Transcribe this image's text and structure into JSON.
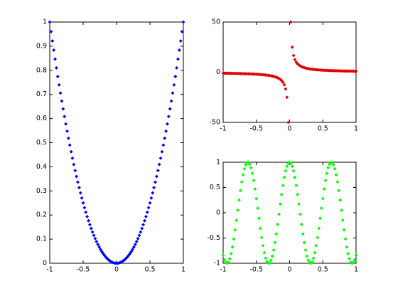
{
  "chart_data": [
    {
      "type": "scatter",
      "color": "#0000ff",
      "x": [
        -1,
        -0.98,
        -0.96,
        -0.94,
        -0.92,
        -0.9,
        -0.88,
        -0.86,
        -0.84,
        -0.82,
        -0.8,
        -0.78,
        -0.76,
        -0.74,
        -0.72,
        -0.7,
        -0.68,
        -0.66,
        -0.64,
        -0.62,
        -0.6,
        -0.58,
        -0.56,
        -0.54,
        -0.52,
        -0.5,
        -0.48,
        -0.46,
        -0.44,
        -0.42,
        -0.4,
        -0.38,
        -0.36,
        -0.34,
        -0.32,
        -0.3,
        -0.28,
        -0.26,
        -0.24,
        -0.22,
        -0.2,
        -0.18,
        -0.16,
        -0.14,
        -0.12,
        -0.1,
        -0.08,
        -0.06,
        -0.04,
        -0.02,
        0,
        0.02,
        0.04,
        0.06,
        0.08,
        0.1,
        0.12,
        0.14,
        0.16,
        0.18,
        0.2,
        0.22,
        0.24,
        0.26,
        0.28,
        0.3,
        0.32,
        0.34,
        0.36,
        0.38,
        0.4,
        0.42,
        0.44,
        0.46,
        0.48,
        0.5,
        0.52,
        0.54,
        0.56,
        0.58,
        0.6,
        0.62,
        0.64,
        0.66,
        0.68,
        0.7,
        0.72,
        0.74,
        0.76,
        0.78,
        0.8,
        0.82,
        0.84,
        0.86,
        0.88,
        0.9,
        0.92,
        0.94,
        0.96,
        0.98,
        1
      ],
      "values": [
        1,
        0.9604,
        0.9216,
        0.8836,
        0.8464,
        0.81,
        0.7744,
        0.7396,
        0.7056,
        0.6724,
        0.64,
        0.6084,
        0.5776,
        0.5476,
        0.5184,
        0.49,
        0.4624,
        0.4356,
        0.4096,
        0.3844,
        0.36,
        0.3364,
        0.3136,
        0.2916,
        0.2704,
        0.25,
        0.2304,
        0.2116,
        0.1936,
        0.1764,
        0.16,
        0.1444,
        0.1296,
        0.1156,
        0.1024,
        0.09,
        0.0784,
        0.0676,
        0.0576,
        0.0484,
        0.04,
        0.0324,
        0.0256,
        0.0196,
        0.0144,
        0.01,
        0.0064,
        0.0036,
        0.0016,
        0.0004,
        0,
        0.0004,
        0.0016,
        0.0036,
        0.0064,
        0.01,
        0.0144,
        0.0196,
        0.0256,
        0.0324,
        0.04,
        0.0484,
        0.0576,
        0.0676,
        0.0784,
        0.09,
        0.1024,
        0.1156,
        0.1296,
        0.1444,
        0.16,
        0.1764,
        0.1936,
        0.2116,
        0.2304,
        0.25,
        0.2704,
        0.2916,
        0.3136,
        0.3364,
        0.36,
        0.3844,
        0.4096,
        0.4356,
        0.4624,
        0.49,
        0.5184,
        0.5476,
        0.5776,
        0.6084,
        0.64,
        0.6724,
        0.7056,
        0.7396,
        0.7744,
        0.81,
        0.8464,
        0.8836,
        0.9216,
        0.9604,
        1
      ],
      "xlim": [
        -1,
        1
      ],
      "xticks": [
        -1,
        -0.5,
        0,
        0.5,
        1
      ],
      "ylim": [
        0,
        1
      ],
      "yticks": [
        0,
        0.1,
        0.2,
        0.3,
        0.4,
        0.5,
        0.6,
        0.7,
        0.8,
        0.9,
        1
      ]
    },
    {
      "type": "scatter",
      "color": "#e00000",
      "x": [
        -1,
        -0.98,
        -0.96,
        -0.94,
        -0.92,
        -0.9,
        -0.88,
        -0.86,
        -0.84,
        -0.82,
        -0.8,
        -0.78,
        -0.76,
        -0.74,
        -0.72,
        -0.7,
        -0.68,
        -0.66,
        -0.64,
        -0.62,
        -0.6,
        -0.58,
        -0.56,
        -0.54,
        -0.52,
        -0.5,
        -0.48,
        -0.46,
        -0.44,
        -0.42,
        -0.4,
        -0.38,
        -0.36,
        -0.34,
        -0.32,
        -0.3,
        -0.28,
        -0.26,
        -0.24,
        -0.22,
        -0.2,
        -0.18,
        -0.16,
        -0.14,
        -0.12,
        -0.1,
        -0.08,
        -0.06,
        -0.04,
        -0.02,
        0,
        0.02,
        0.04,
        0.06,
        0.08,
        0.1,
        0.12,
        0.14,
        0.16,
        0.18,
        0.2,
        0.22,
        0.24,
        0.26,
        0.28,
        0.3,
        0.32,
        0.34,
        0.36,
        0.38,
        0.4,
        0.42,
        0.44,
        0.46,
        0.48,
        0.5,
        0.52,
        0.54,
        0.56,
        0.58,
        0.6,
        0.62,
        0.64,
        0.66,
        0.68,
        0.7,
        0.72,
        0.74,
        0.76,
        0.78,
        0.8,
        0.82,
        0.84,
        0.86,
        0.88,
        0.9,
        0.92,
        0.94,
        0.96,
        0.98,
        1
      ],
      "values": [
        -1,
        -1.02,
        -1.04,
        -1.06,
        -1.09,
        -1.11,
        -1.14,
        -1.16,
        -1.19,
        -1.22,
        -1.25,
        -1.28,
        -1.32,
        -1.35,
        -1.39,
        -1.43,
        -1.47,
        -1.52,
        -1.56,
        -1.61,
        -1.67,
        -1.72,
        -1.79,
        -1.85,
        -1.92,
        -2,
        -2.08,
        -2.17,
        -2.27,
        -2.38,
        -2.5,
        -2.63,
        -2.78,
        -2.94,
        -3.13,
        -3.33,
        -3.57,
        -3.85,
        -4.17,
        -4.55,
        -5,
        -5.56,
        -6.25,
        -7.14,
        -8.33,
        -10,
        -12.5,
        -16.67,
        -25,
        -50,
        null,
        50,
        25,
        16.67,
        12.5,
        10,
        8.33,
        7.14,
        6.25,
        5.56,
        5,
        4.55,
        4.17,
        3.85,
        3.57,
        3.33,
        3.13,
        2.94,
        2.78,
        2.63,
        2.5,
        2.38,
        2.27,
        2.17,
        2.08,
        2,
        1.92,
        1.85,
        1.79,
        1.72,
        1.67,
        1.61,
        1.56,
        1.52,
        1.47,
        1.43,
        1.39,
        1.35,
        1.32,
        1.28,
        1.25,
        1.22,
        1.19,
        1.16,
        1.14,
        1.11,
        1.09,
        1.06,
        1.04,
        1.02,
        1
      ],
      "xlim": [
        -1,
        1
      ],
      "xticks": [
        -1,
        -0.5,
        0,
        0.5,
        1
      ],
      "ylim": [
        -50,
        50
      ],
      "yticks": [
        -50,
        0,
        50
      ]
    },
    {
      "type": "scatter",
      "color": "#00ff00",
      "x": [
        -1,
        -0.98,
        -0.96,
        -0.94,
        -0.92,
        -0.9,
        -0.88,
        -0.86,
        -0.84,
        -0.82,
        -0.8,
        -0.78,
        -0.76,
        -0.74,
        -0.72,
        -0.7,
        -0.68,
        -0.66,
        -0.64,
        -0.62,
        -0.6,
        -0.58,
        -0.56,
        -0.54,
        -0.52,
        -0.5,
        -0.48,
        -0.46,
        -0.44,
        -0.42,
        -0.4,
        -0.38,
        -0.36,
        -0.34,
        -0.32,
        -0.3,
        -0.28,
        -0.26,
        -0.24,
        -0.22,
        -0.2,
        -0.18,
        -0.16,
        -0.14,
        -0.12,
        -0.1,
        -0.08,
        -0.06,
        -0.04,
        -0.02,
        0,
        0.02,
        0.04,
        0.06,
        0.08,
        0.1,
        0.12,
        0.14,
        0.16,
        0.18,
        0.2,
        0.22,
        0.24,
        0.26,
        0.28,
        0.3,
        0.32,
        0.34,
        0.36,
        0.38,
        0.4,
        0.42,
        0.44,
        0.46,
        0.48,
        0.5,
        0.52,
        0.54,
        0.56,
        0.58,
        0.6,
        0.62,
        0.64,
        0.66,
        0.68,
        0.7,
        0.72,
        0.74,
        0.76,
        0.78,
        0.8,
        0.82,
        0.84,
        0.86,
        0.88,
        0.9,
        0.92,
        0.94,
        0.96,
        0.98,
        1
      ],
      "values": [
        -0.84,
        -0.93,
        -0.98,
        -1,
        -0.98,
        -0.91,
        -0.81,
        -0.68,
        -0.52,
        -0.34,
        -0.15,
        0.05,
        0.25,
        0.44,
        0.61,
        0.75,
        0.87,
        0.95,
        0.99,
        1,
        0.96,
        0.89,
        0.78,
        0.64,
        0.47,
        0.28,
        0.09,
        -0.11,
        -0.31,
        -0.49,
        -0.65,
        -0.79,
        -0.9,
        -0.97,
        -1,
        -0.99,
        -0.94,
        -0.86,
        -0.74,
        -0.59,
        -0.42,
        -0.23,
        -0.03,
        0.17,
        0.36,
        0.54,
        0.7,
        0.83,
        0.92,
        0.98,
        1,
        0.98,
        0.92,
        0.83,
        0.7,
        0.54,
        0.36,
        0.17,
        -0.03,
        -0.23,
        -0.42,
        -0.59,
        -0.74,
        -0.86,
        -0.94,
        -0.99,
        -1,
        -0.97,
        -0.9,
        -0.79,
        -0.65,
        -0.49,
        -0.31,
        -0.11,
        0.09,
        0.28,
        0.47,
        0.64,
        0.78,
        0.89,
        0.96,
        1,
        0.99,
        0.95,
        0.87,
        0.75,
        0.61,
        0.44,
        0.25,
        0.05,
        -0.15,
        -0.34,
        -0.52,
        -0.68,
        -0.81,
        -0.91,
        -0.98,
        -1,
        -0.98,
        -0.93,
        -0.84
      ],
      "xlim": [
        -1,
        1
      ],
      "xticks": [
        -1,
        -0.5,
        0,
        0.5,
        1
      ],
      "ylim": [
        -1,
        1
      ],
      "yticks": [
        -1,
        -0.5,
        0,
        0.5,
        1
      ]
    }
  ]
}
